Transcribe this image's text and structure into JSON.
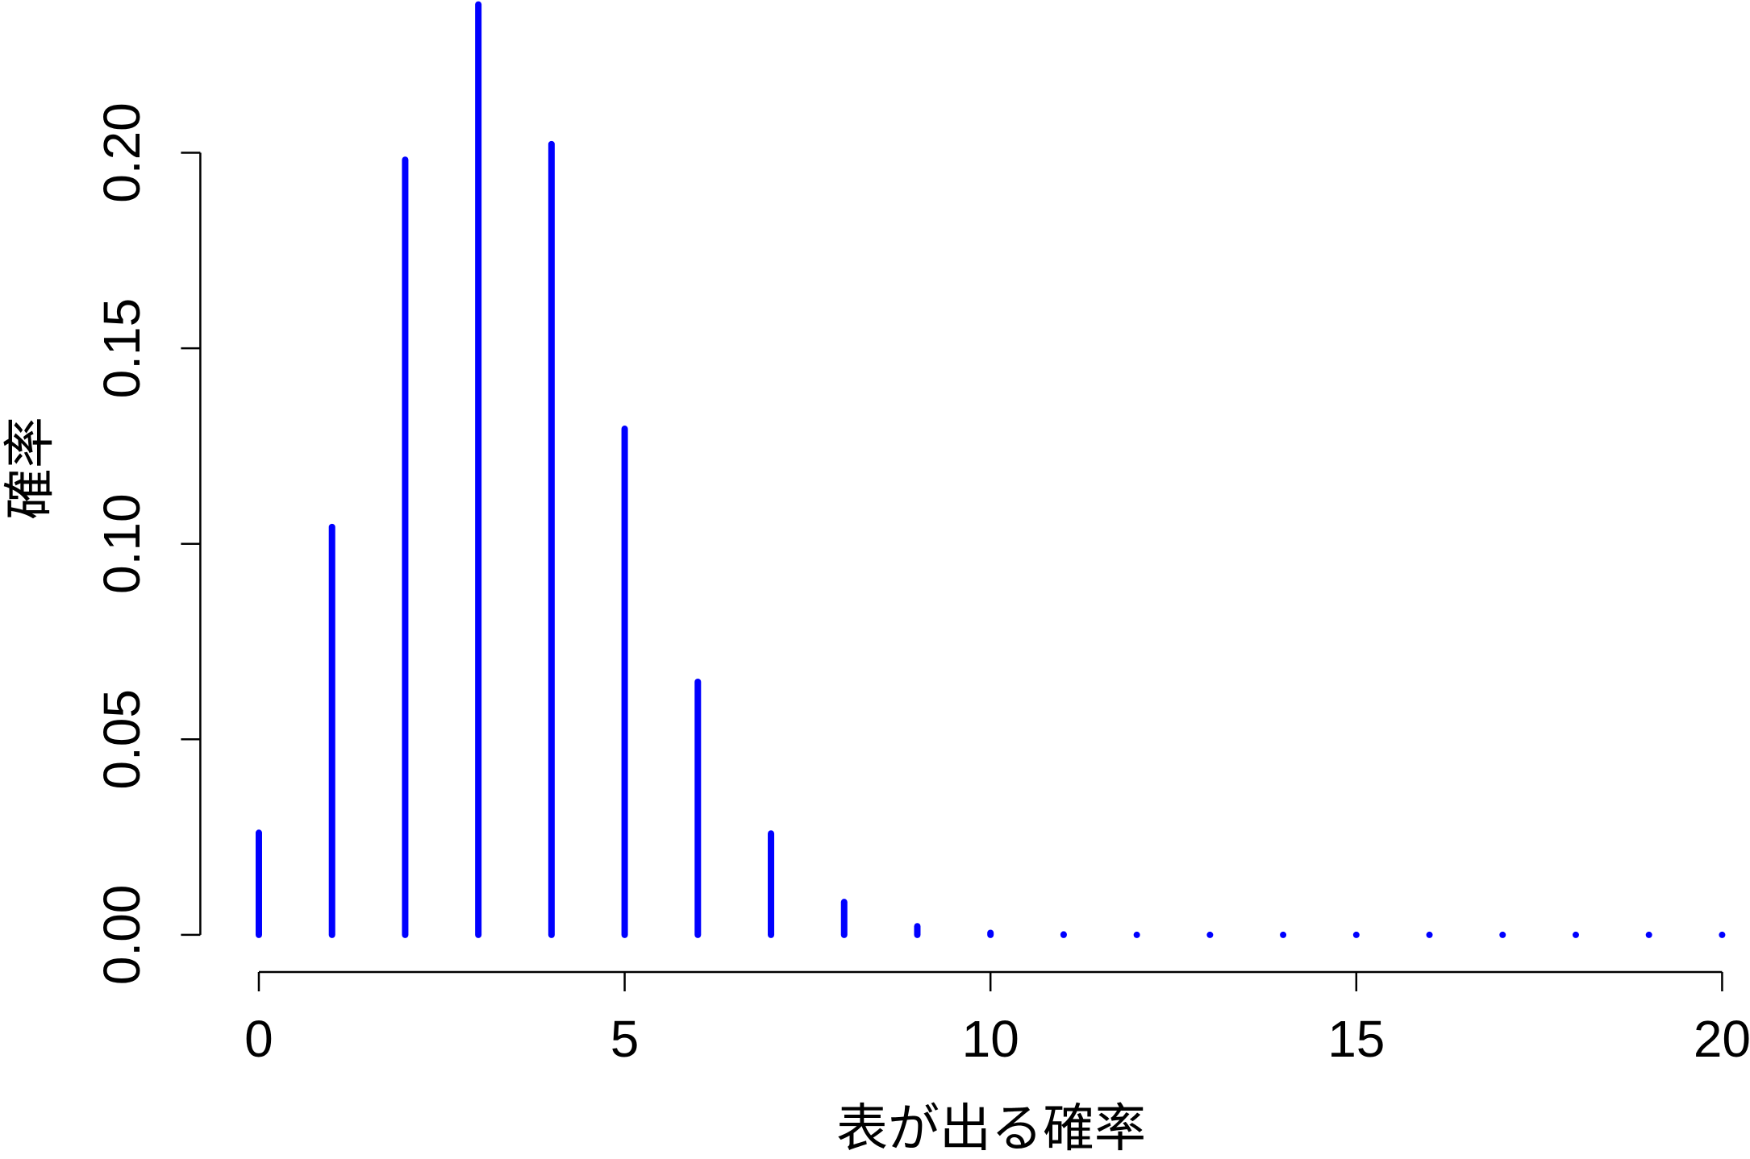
{
  "chart_data": {
    "type": "stem",
    "xlabel": "表が出る確率",
    "ylabel": "確率",
    "x": [
      0,
      1,
      2,
      3,
      4,
      5,
      6,
      7,
      8,
      9,
      10,
      11,
      12,
      13,
      14,
      15,
      16,
      17,
      18,
      19,
      20
    ],
    "values": [
      0.0261,
      0.1043,
      0.1982,
      0.2379,
      0.2022,
      0.1294,
      0.0647,
      0.0259,
      0.0084,
      0.0022,
      0.0005,
      0.0001,
      0,
      0,
      0,
      0,
      0,
      0,
      0,
      0,
      0
    ],
    "color": "#0000ff",
    "xlim": [
      -0.8,
      20.8
    ],
    "ylim": [
      -0.0095,
      0.2473
    ],
    "xticks": [
      0,
      5,
      10,
      15,
      20
    ],
    "yticks": [
      {
        "value": 0,
        "label": "0.00"
      },
      {
        "value": 0.05,
        "label": "0.05"
      },
      {
        "value": 0.1,
        "label": "0.10"
      },
      {
        "value": 0.15,
        "label": "0.15"
      },
      {
        "value": 0.2,
        "label": "0.20"
      }
    ]
  }
}
